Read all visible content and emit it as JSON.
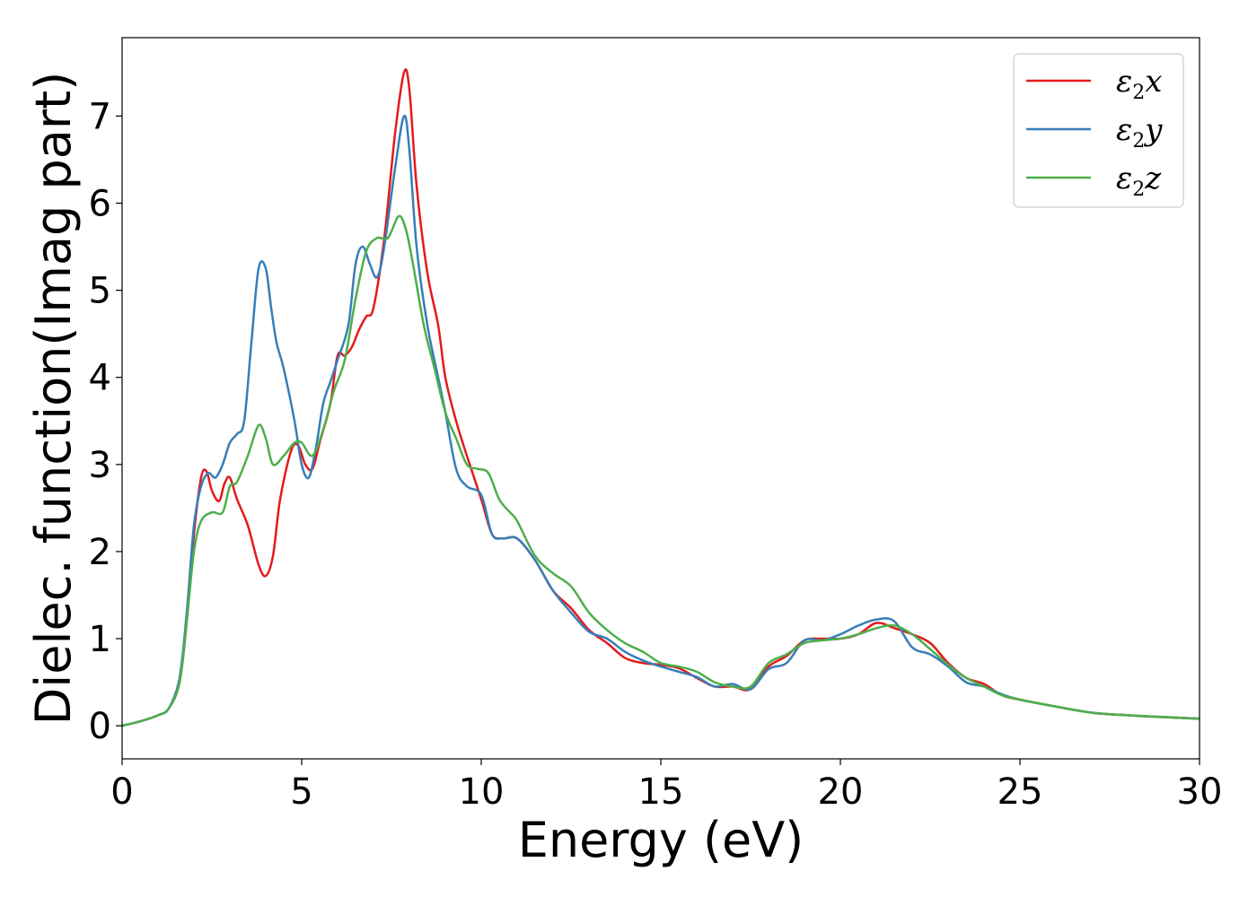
{
  "chart_data": {
    "type": "line",
    "title": "",
    "xlabel": "Energy (eV)",
    "ylabel": "Dielec. function(Imag part)",
    "xlim": [
      0,
      30
    ],
    "ylim": [
      -0.38,
      7.9
    ],
    "xticks": [
      "0",
      "5",
      "10",
      "15",
      "20",
      "25",
      "30"
    ],
    "yticks": [
      "0",
      "1",
      "2",
      "3",
      "4",
      "5",
      "6",
      "7"
    ],
    "grid": false,
    "legend_position": "top-right",
    "series": [
      {
        "name": "ε2x",
        "symbol": "ε",
        "sub": "2",
        "axis": "x",
        "color": "#e41a1c",
        "x": [
          0,
          0.5,
          1,
          1.3,
          1.6,
          1.8,
          2,
          2.2,
          2.35,
          2.5,
          2.7,
          2.85,
          3,
          3.2,
          3.5,
          3.8,
          4,
          4.2,
          4.4,
          4.7,
          4.9,
          5.1,
          5.3,
          5.5,
          5.8,
          6,
          6.2,
          6.4,
          6.6,
          6.8,
          7,
          7.3,
          7.6,
          7.85,
          8,
          8.2,
          8.5,
          8.8,
          9,
          9.3,
          9.6,
          10,
          10.3,
          10.6,
          11,
          11.5,
          12,
          12.5,
          13,
          13.5,
          14,
          14.5,
          15,
          15.5,
          16,
          16.5,
          17,
          17.5,
          18,
          18.5,
          19,
          19.5,
          20,
          20.5,
          21,
          21.5,
          22,
          22.5,
          23,
          23.5,
          24,
          24.5,
          25,
          26,
          27,
          28,
          29,
          30
        ],
        "y": [
          0,
          0.05,
          0.12,
          0.2,
          0.5,
          1.2,
          2.2,
          2.85,
          2.92,
          2.7,
          2.58,
          2.78,
          2.85,
          2.6,
          2.3,
          1.85,
          1.72,
          1.95,
          2.6,
          3.15,
          3.22,
          3.0,
          2.95,
          3.25,
          3.7,
          4.25,
          4.25,
          4.35,
          4.55,
          4.7,
          4.8,
          5.6,
          6.8,
          7.5,
          7.3,
          6.2,
          5.2,
          4.6,
          4.0,
          3.5,
          3.1,
          2.6,
          2.2,
          2.15,
          2.15,
          1.9,
          1.55,
          1.35,
          1.1,
          0.95,
          0.78,
          0.72,
          0.7,
          0.66,
          0.55,
          0.45,
          0.45,
          0.42,
          0.68,
          0.8,
          0.98,
          1.0,
          1.0,
          1.05,
          1.18,
          1.12,
          1.05,
          0.95,
          0.72,
          0.55,
          0.48,
          0.35,
          0.3,
          0.22,
          0.15,
          0.12,
          0.1,
          0.08
        ]
      },
      {
        "name": "ε2y",
        "symbol": "ε",
        "sub": "2",
        "axis": "y",
        "color": "#377eb8",
        "x": [
          0,
          0.5,
          1,
          1.3,
          1.6,
          1.8,
          2,
          2.2,
          2.4,
          2.6,
          2.8,
          3,
          3.2,
          3.4,
          3.6,
          3.8,
          4,
          4.15,
          4.3,
          4.5,
          4.8,
          5,
          5.2,
          5.4,
          5.6,
          5.8,
          6,
          6.3,
          6.5,
          6.7,
          6.9,
          7.1,
          7.3,
          7.6,
          7.85,
          8,
          8.2,
          8.5,
          8.8,
          9,
          9.3,
          9.6,
          10,
          10.3,
          10.6,
          11,
          11.5,
          12,
          12.5,
          13,
          13.5,
          14,
          14.5,
          15,
          15.5,
          16,
          16.5,
          17,
          17.5,
          18,
          18.5,
          19,
          19.5,
          20,
          20.5,
          21,
          21.5,
          22,
          22.5,
          23,
          23.5,
          24,
          24.5,
          25,
          26,
          27,
          28,
          29,
          30
        ],
        "y": [
          0,
          0.05,
          0.12,
          0.2,
          0.55,
          1.3,
          2.3,
          2.75,
          2.9,
          2.85,
          3.0,
          3.25,
          3.35,
          3.5,
          4.4,
          5.25,
          5.25,
          4.8,
          4.4,
          4.1,
          3.5,
          3.0,
          2.85,
          3.2,
          3.7,
          3.95,
          4.2,
          4.6,
          5.3,
          5.5,
          5.3,
          5.15,
          5.5,
          6.4,
          7.0,
          6.6,
          5.5,
          4.6,
          4.0,
          3.6,
          2.95,
          2.75,
          2.65,
          2.2,
          2.15,
          2.15,
          1.9,
          1.55,
          1.3,
          1.08,
          1.0,
          0.85,
          0.75,
          0.68,
          0.62,
          0.56,
          0.45,
          0.48,
          0.42,
          0.65,
          0.72,
          0.98,
          0.98,
          1.05,
          1.15,
          1.22,
          1.2,
          0.9,
          0.82,
          0.68,
          0.5,
          0.45,
          0.36,
          0.3,
          0.22,
          0.15,
          0.12,
          0.1,
          0.08
        ]
      },
      {
        "name": "ε2z",
        "symbol": "ε",
        "sub": "2",
        "axis": "z",
        "color": "#4daf4a",
        "x": [
          0,
          0.5,
          1,
          1.3,
          1.6,
          1.8,
          2,
          2.2,
          2.5,
          2.8,
          3,
          3.2,
          3.5,
          3.8,
          4,
          4.2,
          4.5,
          4.8,
          5,
          5.3,
          5.6,
          5.9,
          6.2,
          6.5,
          6.8,
          7.1,
          7.4,
          7.7,
          7.9,
          8.1,
          8.4,
          8.7,
          9,
          9.3,
          9.6,
          9.9,
          10.2,
          10.5,
          10.8,
          11,
          11.5,
          12,
          12.5,
          13,
          13.5,
          14,
          14.5,
          15,
          15.5,
          16,
          16.5,
          17,
          17.5,
          18,
          18.5,
          19,
          19.5,
          20,
          20.5,
          21,
          21.5,
          22,
          22.5,
          23,
          23.5,
          24,
          24.5,
          25,
          26,
          27,
          28,
          29,
          30
        ],
        "y": [
          0,
          0.05,
          0.12,
          0.2,
          0.5,
          1.2,
          2.0,
          2.35,
          2.45,
          2.45,
          2.75,
          2.8,
          3.1,
          3.45,
          3.3,
          3.0,
          3.1,
          3.25,
          3.25,
          3.1,
          3.4,
          3.85,
          4.2,
          4.9,
          5.45,
          5.6,
          5.6,
          5.85,
          5.7,
          5.3,
          4.6,
          4.1,
          3.6,
          3.3,
          3.0,
          2.95,
          2.9,
          2.6,
          2.45,
          2.35,
          1.95,
          1.75,
          1.6,
          1.3,
          1.1,
          0.95,
          0.85,
          0.72,
          0.68,
          0.62,
          0.5,
          0.45,
          0.45,
          0.72,
          0.82,
          0.95,
          0.98,
          1.0,
          1.05,
          1.12,
          1.15,
          1.05,
          0.88,
          0.7,
          0.55,
          0.45,
          0.35,
          0.3,
          0.22,
          0.15,
          0.12,
          0.1,
          0.08
        ]
      }
    ]
  }
}
